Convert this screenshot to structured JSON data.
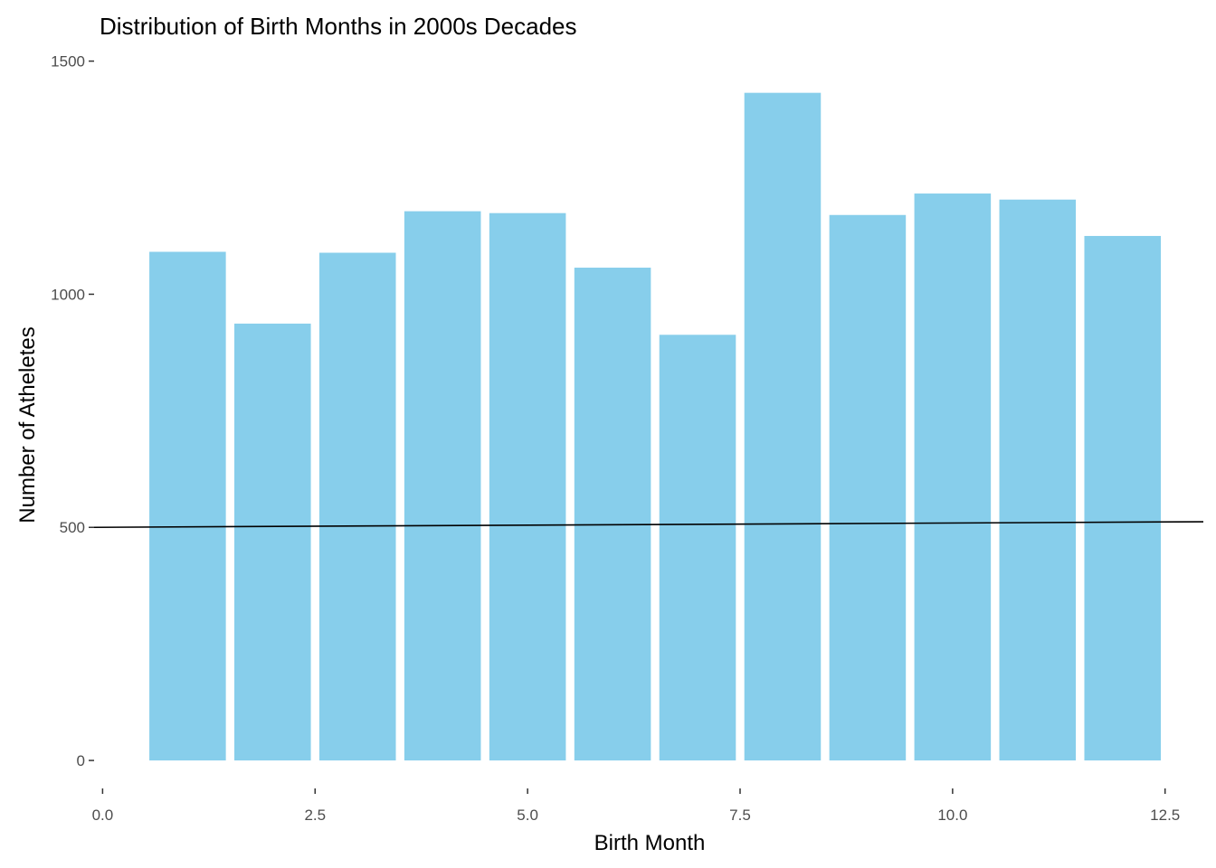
{
  "chart_data": {
    "type": "bar",
    "title": "Distribution of Birth Months in 2000s Decades",
    "xlabel": "Birth Month",
    "ylabel": "Number of Atheletes",
    "x": [
      1,
      2,
      3,
      4,
      5,
      6,
      7,
      8,
      9,
      10,
      11,
      12
    ],
    "values": [
      1091,
      937,
      1089,
      1178,
      1174,
      1057,
      913,
      1432,
      1170,
      1216,
      1203,
      1125
    ],
    "bar_color": "#87CEEB",
    "xlim": [
      -0.1,
      12.95
    ],
    "ylim": [
      -60,
      1538
    ],
    "x_ticks": [
      0,
      2.5,
      5,
      7.5,
      10,
      12.5
    ],
    "x_tick_labels": [
      "0.0",
      "2.5",
      "5.0",
      "7.5",
      "10.0",
      "12.5"
    ],
    "y_ticks": [
      0,
      500,
      1000,
      1500
    ],
    "y_tick_labels": [
      "0",
      "500",
      "1000",
      "1500"
    ],
    "trend_line": {
      "x": [
        -0.1,
        12.95
      ],
      "y": [
        500,
        512
      ]
    },
    "trend_color": "#000000",
    "grid": false
  }
}
